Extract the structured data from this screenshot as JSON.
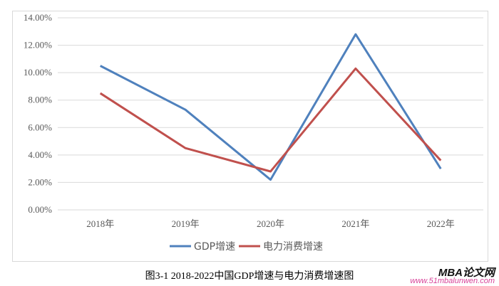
{
  "chart_data": {
    "type": "line",
    "categories": [
      "2018年",
      "2019年",
      "2020年",
      "2021年",
      "2022年"
    ],
    "series": [
      {
        "name": "GDP增速",
        "values": [
          10.5,
          7.3,
          2.2,
          12.8,
          3.0
        ],
        "color": "#4f81bd"
      },
      {
        "name": "电力消费增速",
        "values": [
          8.5,
          4.5,
          2.8,
          10.3,
          3.6
        ],
        "color": "#c0504d"
      }
    ],
    "ylim": [
      0,
      14
    ],
    "yticks": [
      "0.00%",
      "2.00%",
      "4.00%",
      "6.00%",
      "8.00%",
      "10.00%",
      "12.00%",
      "14.00%"
    ],
    "grid": true,
    "legend": "bottom",
    "caption": "图3-1    2018-2022中国GDP增速与电力消费增速图"
  },
  "watermark": {
    "brand": "MBA论文网",
    "url": "www.51mbalunwen.com"
  }
}
